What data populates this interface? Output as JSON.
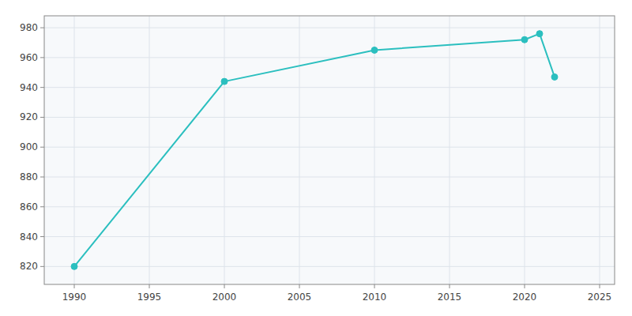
{
  "chart_data": {
    "type": "line",
    "x": [
      1990,
      2000,
      2010,
      2020,
      2021,
      2022
    ],
    "values": [
      820,
      944,
      965,
      972,
      976,
      947
    ],
    "color": "#2bbfbf",
    "marker": "circle",
    "xlim": [
      1988,
      2026
    ],
    "ylim": [
      808,
      988
    ],
    "xticks": [
      1990,
      1995,
      2000,
      2005,
      2010,
      2015,
      2020,
      2025
    ],
    "yticks": [
      820,
      840,
      860,
      880,
      900,
      920,
      940,
      960,
      980
    ],
    "grid": true
  }
}
